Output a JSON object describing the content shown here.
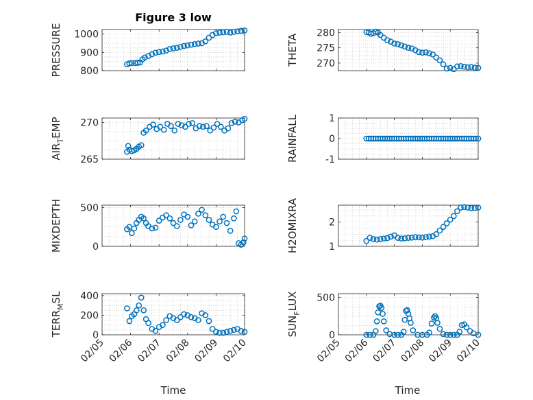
{
  "figure": {
    "title": "Figure 3 low",
    "marker_color": "#0072BD",
    "axis_color": "#262626",
    "xlabel": "Time"
  },
  "chart_data": [
    {
      "type": "scatter",
      "title": "Figure 3 low",
      "ylabel": "PRESSURE",
      "ylabel_sub": "",
      "ylabel_tail": "",
      "xlim": [
        "02/05",
        "02/10"
      ],
      "xticks": [],
      "ylim": [
        800,
        1025
      ],
      "yticks": [
        800,
        900,
        1000
      ],
      "x": [
        "02/05 21:00",
        "02/05 23:00",
        "02/06 01:00",
        "02/06 04:00",
        "02/06 06:00",
        "02/06 08:00",
        "02/06 10:00",
        "02/06 12:00",
        "02/06 15:00",
        "02/06 18:00",
        "02/06 21:00",
        "02/07 00:00",
        "02/07 03:00",
        "02/07 06:00",
        "02/07 09:00",
        "02/07 12:00",
        "02/07 15:00",
        "02/07 18:00",
        "02/07 21:00",
        "02/08 00:00",
        "02/08 03:00",
        "02/08 06:00",
        "02/08 09:00",
        "02/08 12:00",
        "02/08 15:00",
        "02/08 18:00",
        "02/08 21:00",
        "02/09 00:00",
        "02/09 03:00",
        "02/09 06:00",
        "02/09 09:00",
        "02/09 12:00",
        "02/09 15:00",
        "02/09 18:00",
        "02/09 21:00",
        "02/10 00:00"
      ],
      "y": [
        835,
        840,
        842,
        842,
        843,
        845,
        862,
        872,
        880,
        890,
        898,
        902,
        905,
        910,
        918,
        922,
        925,
        930,
        935,
        938,
        942,
        945,
        948,
        950,
        960,
        980,
        995,
        1005,
        1008,
        1010,
        1012,
        1008,
        1012,
        1015,
        1018,
        1020
      ]
    },
    {
      "type": "scatter",
      "title": "",
      "ylabel": "THETA",
      "ylabel_sub": "",
      "ylabel_tail": "",
      "xlim": [
        "02/05",
        "02/10"
      ],
      "xticks": [],
      "ylim": [
        267.5,
        281
      ],
      "yticks": [
        270,
        275,
        280
      ],
      "x": [
        "02/06 00:00",
        "02/06 02:00",
        "02/06 04:00",
        "02/06 06:00",
        "02/06 08:00",
        "02/06 10:00",
        "02/06 12:00",
        "02/06 15:00",
        "02/06 18:00",
        "02/06 21:00",
        "02/07 00:00",
        "02/07 03:00",
        "02/07 06:00",
        "02/07 09:00",
        "02/07 12:00",
        "02/07 15:00",
        "02/07 18:00",
        "02/07 21:00",
        "02/08 00:00",
        "02/08 03:00",
        "02/08 06:00",
        "02/08 09:00",
        "02/08 12:00",
        "02/08 15:00",
        "02/08 18:00",
        "02/08 21:00",
        "02/09 00:00",
        "02/09 03:00",
        "02/09 06:00",
        "02/09 09:00",
        "02/09 12:00",
        "02/09 15:00",
        "02/09 18:00",
        "02/09 21:00",
        "02/10 00:00"
      ],
      "y": [
        280.2,
        280.0,
        279.6,
        279.8,
        280.3,
        280.0,
        279.2,
        278.3,
        277.5,
        277.0,
        276.4,
        276.2,
        275.8,
        275.4,
        275.0,
        274.8,
        274.2,
        273.6,
        273.4,
        273.5,
        273.2,
        272.8,
        271.8,
        270.9,
        269.6,
        268.2,
        268.4,
        268.0,
        268.9,
        269.0,
        268.8,
        268.6,
        268.7,
        268.5,
        268.4
      ]
    },
    {
      "type": "scatter",
      "title": "",
      "ylabel": "AIR",
      "ylabel_sub": "T",
      "ylabel_tail": "EMP",
      "xlim": [
        "02/05",
        "02/10"
      ],
      "xticks": [],
      "ylim": [
        265,
        270.6
      ],
      "yticks": [
        265,
        270
      ],
      "x": [
        "02/05 21:00",
        "02/05 22:00",
        "02/05 23:00",
        "02/06 01:00",
        "02/06 03:00",
        "02/06 05:00",
        "02/06 07:00",
        "02/06 09:00",
        "02/06 11:00",
        "02/06 13:00",
        "02/06 16:00",
        "02/06 19:00",
        "02/06 22:00",
        "02/07 01:00",
        "02/07 04:00",
        "02/07 07:00",
        "02/07 10:00",
        "02/07 13:00",
        "02/07 16:00",
        "02/07 19:00",
        "02/07 22:00",
        "02/08 01:00",
        "02/08 04:00",
        "02/08 07:00",
        "02/08 10:00",
        "02/08 13:00",
        "02/08 16:00",
        "02/08 19:00",
        "02/08 22:00",
        "02/09 01:00",
        "02/09 04:00",
        "02/09 07:00",
        "02/09 10:00",
        "02/09 13:00",
        "02/09 16:00",
        "02/09 19:00",
        "02/09 22:00",
        "02/10 00:00"
      ],
      "y": [
        266.0,
        266.8,
        266.3,
        266.1,
        266.2,
        266.4,
        266.7,
        266.9,
        268.6,
        268.9,
        269.4,
        269.7,
        269.1,
        269.4,
        269.0,
        269.8,
        269.5,
        268.9,
        269.8,
        269.6,
        269.4,
        269.8,
        269.9,
        269.2,
        269.5,
        269.4,
        269.5,
        268.9,
        269.3,
        269.8,
        269.4,
        268.9,
        269.2,
        269.9,
        270.1,
        270.0,
        270.3,
        270.5
      ]
    },
    {
      "type": "scatter",
      "title": "",
      "ylabel": "RAINFALL",
      "ylabel_sub": "",
      "ylabel_tail": "",
      "xlim": [
        "02/05",
        "02/10"
      ],
      "xticks": [],
      "ylim": [
        -1,
        1
      ],
      "yticks": [
        -1,
        0,
        1
      ],
      "x": [
        "02/06 00:00",
        "02/06 02:00",
        "02/06 04:00",
        "02/06 06:00",
        "02/06 08:00",
        "02/06 10:00",
        "02/06 12:00",
        "02/06 14:00",
        "02/06 16:00",
        "02/06 18:00",
        "02/06 20:00",
        "02/06 22:00",
        "02/07 00:00",
        "02/07 02:00",
        "02/07 04:00",
        "02/07 06:00",
        "02/07 08:00",
        "02/07 10:00",
        "02/07 12:00",
        "02/07 14:00",
        "02/07 16:00",
        "02/07 18:00",
        "02/07 20:00",
        "02/07 22:00",
        "02/08 00:00",
        "02/08 02:00",
        "02/08 04:00",
        "02/08 06:00",
        "02/08 08:00",
        "02/08 10:00",
        "02/08 12:00",
        "02/08 14:00",
        "02/08 16:00",
        "02/08 18:00",
        "02/08 20:00",
        "02/08 22:00",
        "02/09 00:00",
        "02/09 02:00",
        "02/09 04:00",
        "02/09 06:00",
        "02/09 08:00",
        "02/09 10:00",
        "02/09 12:00",
        "02/09 14:00",
        "02/09 16:00",
        "02/09 18:00",
        "02/09 20:00",
        "02/09 22:00",
        "02/10 00:00"
      ],
      "y": [
        0,
        0,
        0,
        0,
        0,
        0,
        0,
        0,
        0,
        0,
        0,
        0,
        0,
        0,
        0,
        0,
        0,
        0,
        0,
        0,
        0,
        0,
        0,
        0,
        0,
        0,
        0,
        0,
        0,
        0,
        0,
        0,
        0,
        0,
        0,
        0,
        0,
        0,
        0,
        0,
        0,
        0,
        0,
        0,
        0,
        0,
        0,
        0,
        0
      ]
    },
    {
      "type": "scatter",
      "title": "",
      "ylabel": "MIXDEPTH",
      "ylabel_sub": "",
      "ylabel_tail": "",
      "xlim": [
        "02/05",
        "02/10"
      ],
      "xticks": [],
      "ylim": [
        0,
        530
      ],
      "yticks": [
        0,
        500
      ],
      "x": [
        "02/05 21:00",
        "02/05 23:00",
        "02/06 01:00",
        "02/06 03:00",
        "02/06 05:00",
        "02/06 07:00",
        "02/06 09:00",
        "02/06 11:00",
        "02/06 13:00",
        "02/06 15:00",
        "02/06 18:00",
        "02/06 21:00",
        "02/07 00:00",
        "02/07 03:00",
        "02/07 06:00",
        "02/07 09:00",
        "02/07 12:00",
        "02/07 15:00",
        "02/07 18:00",
        "02/07 21:00",
        "02/08 00:00",
        "02/08 03:00",
        "02/08 06:00",
        "02/08 09:00",
        "02/08 12:00",
        "02/08 15:00",
        "02/08 18:00",
        "02/08 21:00",
        "02/09 00:00",
        "02/09 03:00",
        "02/09 06:00",
        "02/09 09:00",
        "02/09 12:00",
        "02/09 15:00",
        "02/09 17:00",
        "02/09 19:00",
        "02/09 21:00",
        "02/09 23:00",
        "02/10 00:00"
      ],
      "y": [
        220,
        250,
        170,
        230,
        300,
        340,
        380,
        360,
        300,
        260,
        230,
        240,
        330,
        370,
        400,
        360,
        300,
        260,
        340,
        410,
        380,
        270,
        320,
        420,
        470,
        400,
        340,
        280,
        250,
        320,
        380,
        300,
        200,
        360,
        450,
        40,
        20,
        50,
        100
      ]
    },
    {
      "type": "scatter",
      "title": "",
      "ylabel": "H2OMIXRA",
      "ylabel_sub": "",
      "ylabel_tail": "",
      "xlim": [
        "02/05",
        "02/10"
      ],
      "xticks": [],
      "ylim": [
        1,
        2.7
      ],
      "yticks": [
        1,
        2
      ],
      "x": [
        "02/06 00:00",
        "02/06 03:00",
        "02/06 06:00",
        "02/06 09:00",
        "02/06 12:00",
        "02/06 15:00",
        "02/06 18:00",
        "02/06 21:00",
        "02/07 00:00",
        "02/07 03:00",
        "02/07 06:00",
        "02/07 09:00",
        "02/07 12:00",
        "02/07 15:00",
        "02/07 18:00",
        "02/07 21:00",
        "02/08 00:00",
        "02/08 03:00",
        "02/08 06:00",
        "02/08 09:00",
        "02/08 12:00",
        "02/08 15:00",
        "02/08 18:00",
        "02/08 21:00",
        "02/09 00:00",
        "02/09 03:00",
        "02/09 06:00",
        "02/09 09:00",
        "02/09 12:00",
        "02/09 15:00",
        "02/09 18:00",
        "02/09 21:00",
        "02/10 00:00"
      ],
      "y": [
        1.22,
        1.35,
        1.3,
        1.28,
        1.3,
        1.32,
        1.34,
        1.4,
        1.45,
        1.35,
        1.32,
        1.33,
        1.35,
        1.36,
        1.38,
        1.37,
        1.36,
        1.38,
        1.4,
        1.42,
        1.5,
        1.65,
        1.8,
        1.95,
        2.1,
        2.25,
        2.45,
        2.6,
        2.62,
        2.6,
        2.58,
        2.58,
        2.6
      ]
    },
    {
      "type": "scatter",
      "title": "",
      "ylabel": "TERR",
      "ylabel_sub": "M",
      "ylabel_tail": "SL",
      "xlim": [
        "02/05",
        "02/10"
      ],
      "xticks": [
        "02/05",
        "02/06",
        "02/07",
        "02/08",
        "02/09",
        "02/10"
      ],
      "ylim": [
        0,
        420
      ],
      "yticks": [
        0,
        200,
        400
      ],
      "x": [
        "02/05 21:00",
        "02/05 23:00",
        "02/06 01:00",
        "02/06 03:00",
        "02/06 05:00",
        "02/06 07:00",
        "02/06 09:00",
        "02/06 11:00",
        "02/06 13:00",
        "02/06 15:00",
        "02/06 18:00",
        "02/06 21:00",
        "02/07 00:00",
        "02/07 03:00",
        "02/07 06:00",
        "02/07 09:00",
        "02/07 12:00",
        "02/07 15:00",
        "02/07 18:00",
        "02/07 21:00",
        "02/08 00:00",
        "02/08 03:00",
        "02/08 06:00",
        "02/08 09:00",
        "02/08 12:00",
        "02/08 15:00",
        "02/08 18:00",
        "02/08 21:00",
        "02/09 00:00",
        "02/09 03:00",
        "02/09 06:00",
        "02/09 09:00",
        "02/09 12:00",
        "02/09 15:00",
        "02/09 18:00",
        "02/09 21:00",
        "02/10 00:00"
      ],
      "y": [
        270,
        140,
        190,
        210,
        250,
        300,
        380,
        250,
        160,
        120,
        60,
        40,
        80,
        100,
        150,
        190,
        170,
        150,
        180,
        210,
        200,
        180,
        170,
        150,
        220,
        200,
        140,
        60,
        30,
        20,
        20,
        30,
        40,
        50,
        60,
        40,
        30
      ]
    },
    {
      "type": "scatter",
      "title": "",
      "ylabel": "SUN",
      "ylabel_sub": "F",
      "ylabel_tail": "LUX",
      "xlim": [
        "02/05",
        "02/10"
      ],
      "xticks": [
        "02/05",
        "02/06",
        "02/07",
        "02/08",
        "02/09",
        "02/10"
      ],
      "ylim": [
        0,
        550
      ],
      "yticks": [
        0,
        500
      ],
      "x": [
        "02/06 00:00",
        "02/06 03:00",
        "02/06 06:00",
        "02/06 08:00",
        "02/06 09:00",
        "02/06 10:00",
        "02/06 11:00",
        "02/06 12:00",
        "02/06 13:00",
        "02/06 14:00",
        "02/06 15:00",
        "02/06 17:00",
        "02/06 20:00",
        "02/07 00:00",
        "02/07 03:00",
        "02/07 06:00",
        "02/07 08:00",
        "02/07 09:00",
        "02/07 10:00",
        "02/07 11:00",
        "02/07 12:00",
        "02/07 13:00",
        "02/07 14:00",
        "02/07 16:00",
        "02/07 20:00",
        "02/08 00:00",
        "02/08 04:00",
        "02/08 06:00",
        "02/08 08:00",
        "02/08 10:00",
        "02/08 11:00",
        "02/08 12:00",
        "02/08 13:00",
        "02/08 15:00",
        "02/08 18:00",
        "02/08 21:00",
        "02/09 00:00",
        "02/09 03:00",
        "02/09 06:00",
        "02/09 08:00",
        "02/09 10:00",
        "02/09 12:00",
        "02/09 14:00",
        "02/09 17:00",
        "02/09 20:00",
        "02/10 00:00"
      ],
      "y": [
        0,
        0,
        0,
        50,
        180,
        300,
        380,
        390,
        360,
        280,
        180,
        60,
        10,
        0,
        0,
        0,
        40,
        200,
        320,
        330,
        280,
        220,
        160,
        60,
        0,
        0,
        0,
        30,
        150,
        230,
        250,
        220,
        160,
        80,
        10,
        0,
        0,
        0,
        0,
        40,
        130,
        140,
        100,
        50,
        20,
        0
      ]
    }
  ]
}
